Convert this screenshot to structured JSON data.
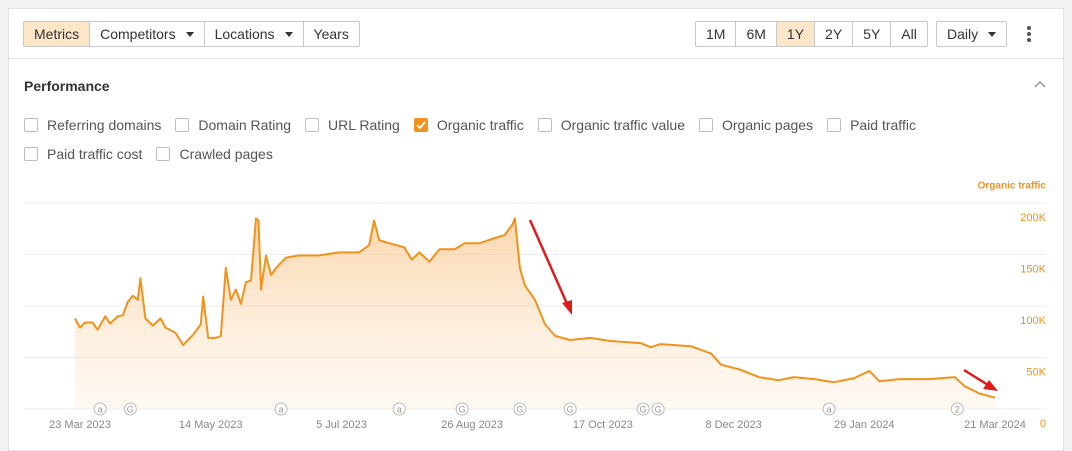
{
  "toolbar": {
    "tabs": [
      {
        "label": "Metrics",
        "active": true
      },
      {
        "label": "Competitors",
        "dropdown": true
      },
      {
        "label": "Locations",
        "dropdown": true
      },
      {
        "label": "Years"
      }
    ],
    "ranges": [
      {
        "label": "1M"
      },
      {
        "label": "6M"
      },
      {
        "label": "1Y",
        "active": true
      },
      {
        "label": "2Y"
      },
      {
        "label": "5Y"
      },
      {
        "label": "All"
      }
    ],
    "interval": {
      "label": "Daily",
      "dropdown": true
    }
  },
  "panel": {
    "title": "Performance",
    "metrics": [
      {
        "label": "Referring domains",
        "checked": false
      },
      {
        "label": "Domain Rating",
        "checked": false
      },
      {
        "label": "URL Rating",
        "checked": false
      },
      {
        "label": "Organic traffic",
        "checked": true
      },
      {
        "label": "Organic traffic value",
        "checked": false
      },
      {
        "label": "Organic pages",
        "checked": false
      },
      {
        "label": "Paid traffic",
        "checked": false
      },
      {
        "label": "Paid traffic cost",
        "checked": false
      },
      {
        "label": "Crawled pages",
        "checked": false
      }
    ]
  },
  "chart_data": {
    "type": "area",
    "y_axis_title": "Organic traffic",
    "color": "#f0921c",
    "grid": true,
    "xlim": [
      "2023-03-21",
      "2024-03-21"
    ],
    "ylim": [
      0,
      200000
    ],
    "yticks": [
      {
        "value": 0,
        "label": "0"
      },
      {
        "value": 50000,
        "label": "50K"
      },
      {
        "value": 100000,
        "label": "100K"
      },
      {
        "value": 150000,
        "label": "150K"
      },
      {
        "value": 200000,
        "label": "200K"
      }
    ],
    "xticks": [
      {
        "value": "2023-03-23",
        "label": "23 Mar 2023"
      },
      {
        "value": "2023-05-14",
        "label": "14 May 2023"
      },
      {
        "value": "2023-07-05",
        "label": "5 Jul 2023"
      },
      {
        "value": "2023-08-26",
        "label": "26 Aug 2023"
      },
      {
        "value": "2023-10-17",
        "label": "17 Oct 2023"
      },
      {
        "value": "2023-12-08",
        "label": "8 Dec 2023"
      },
      {
        "value": "2024-01-29",
        "label": "29 Jan 2024"
      },
      {
        "value": "2024-03-21",
        "label": "21 Mar 2024"
      }
    ],
    "x": [
      "2023-03-21",
      "2023-03-23",
      "2023-03-25",
      "2023-03-28",
      "2023-03-30",
      "2023-04-02",
      "2023-04-04",
      "2023-04-07",
      "2023-04-09",
      "2023-04-11",
      "2023-04-13",
      "2023-04-15",
      "2023-04-16",
      "2023-04-18",
      "2023-04-21",
      "2023-04-24",
      "2023-04-26",
      "2023-04-30",
      "2023-05-03",
      "2023-05-07",
      "2023-05-10",
      "2023-05-11",
      "2023-05-13",
      "2023-05-16",
      "2023-05-18",
      "2023-05-20",
      "2023-05-22",
      "2023-05-24",
      "2023-05-26",
      "2023-05-28",
      "2023-05-30",
      "2023-06-01",
      "2023-06-02",
      "2023-06-03",
      "2023-06-05",
      "2023-06-07",
      "2023-06-09",
      "2023-06-13",
      "2023-06-18",
      "2023-06-26",
      "2023-07-04",
      "2023-07-12",
      "2023-07-16",
      "2023-07-18",
      "2023-07-20",
      "2023-07-24",
      "2023-07-30",
      "2023-08-02",
      "2023-08-05",
      "2023-08-09",
      "2023-08-13",
      "2023-08-19",
      "2023-08-23",
      "2023-08-29",
      "2023-09-04",
      "2023-09-08",
      "2023-09-11",
      "2023-09-12",
      "2023-09-14",
      "2023-09-16",
      "2023-09-20",
      "2023-09-24",
      "2023-09-28",
      "2023-10-04",
      "2023-10-12",
      "2023-10-20",
      "2023-11-01",
      "2023-11-05",
      "2023-11-09",
      "2023-11-21",
      "2023-11-29",
      "2023-12-03",
      "2023-12-11",
      "2023-12-18",
      "2023-12-26",
      "2024-01-01",
      "2024-01-09",
      "2024-01-17",
      "2024-01-25",
      "2024-01-31",
      "2024-02-04",
      "2024-02-12",
      "2024-02-24",
      "2024-03-05",
      "2024-03-09",
      "2024-03-15",
      "2024-03-21"
    ],
    "values": [
      88000,
      79000,
      84000,
      84000,
      77000,
      90000,
      83000,
      90000,
      91000,
      104000,
      110000,
      106000,
      127000,
      88000,
      81000,
      88000,
      79000,
      74000,
      62000,
      72000,
      82000,
      109000,
      69000,
      69000,
      71000,
      137000,
      106000,
      116000,
      102000,
      123000,
      125000,
      185000,
      183000,
      116000,
      149000,
      130000,
      137000,
      147000,
      149000,
      149000,
      152000,
      152000,
      159000,
      183000,
      164000,
      161000,
      157000,
      145000,
      152000,
      143000,
      155000,
      155000,
      161000,
      161000,
      166000,
      169000,
      179000,
      185000,
      137000,
      120000,
      106000,
      82000,
      71000,
      67000,
      69000,
      66000,
      64000,
      60000,
      63000,
      61000,
      54000,
      43000,
      38000,
      31000,
      28000,
      31000,
      29000,
      26000,
      30000,
      37000,
      27000,
      29000,
      29000,
      31000,
      22000,
      15000,
      11000
    ],
    "events": [
      {
        "date": "2023-03-31",
        "label": "a"
      },
      {
        "date": "2023-04-12",
        "label": "G"
      },
      {
        "date": "2023-06-11",
        "label": "a"
      },
      {
        "date": "2023-07-28",
        "label": "a"
      },
      {
        "date": "2023-08-22",
        "label": "G"
      },
      {
        "date": "2023-09-14",
        "label": "G"
      },
      {
        "date": "2023-10-04",
        "label": "G"
      },
      {
        "date": "2023-11-02",
        "label": "G"
      },
      {
        "date": "2023-11-08",
        "label": "G"
      },
      {
        "date": "2024-01-15",
        "label": "a"
      },
      {
        "date": "2024-03-06",
        "label": "2"
      }
    ]
  }
}
